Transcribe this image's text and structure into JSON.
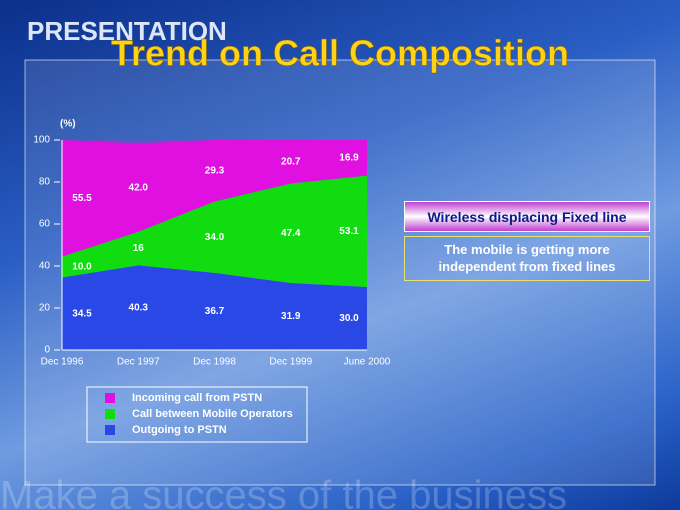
{
  "slide": {
    "header": "PRESENTATION",
    "callouts": [
      "Wireless displacing Fixed line",
      "The mobile is getting more independent from fixed lines"
    ],
    "watermark": "Make a success of the business"
  },
  "chart_data": {
    "type": "stacked_area",
    "title": "Trend on Call Composition",
    "y_label": "(%)",
    "categories": [
      "Dec 1996",
      "Dec 1997",
      "Dec 1998",
      "Dec 1999",
      "June 2000"
    ],
    "series": [
      {
        "name": "Outgoing to PSTN",
        "color": "#2a48e6",
        "values": [
          34.5,
          40.3,
          36.7,
          31.9,
          30.0
        ],
        "value_labels": [
          "34.5",
          "40.3",
          "36.7",
          "31.9",
          "30.0"
        ]
      },
      {
        "name": "Call between Mobile Operators",
        "color": "#10dc10",
        "values": [
          10.0,
          16,
          34.0,
          47.4,
          53.1
        ],
        "value_labels": [
          "10.0",
          "16",
          "34.0",
          "47.4",
          "53.1"
        ]
      },
      {
        "name": "Incoming call from PSTN",
        "color": "#e010e0",
        "values": [
          55.5,
          42.0,
          29.3,
          20.7,
          16.9
        ],
        "value_labels": [
          "55.5",
          "42.0",
          "29.3",
          "20.7",
          "16.9"
        ]
      }
    ],
    "ylim": [
      0,
      100
    ],
    "yticks": [
      0,
      20,
      40,
      60,
      80,
      100
    ]
  }
}
